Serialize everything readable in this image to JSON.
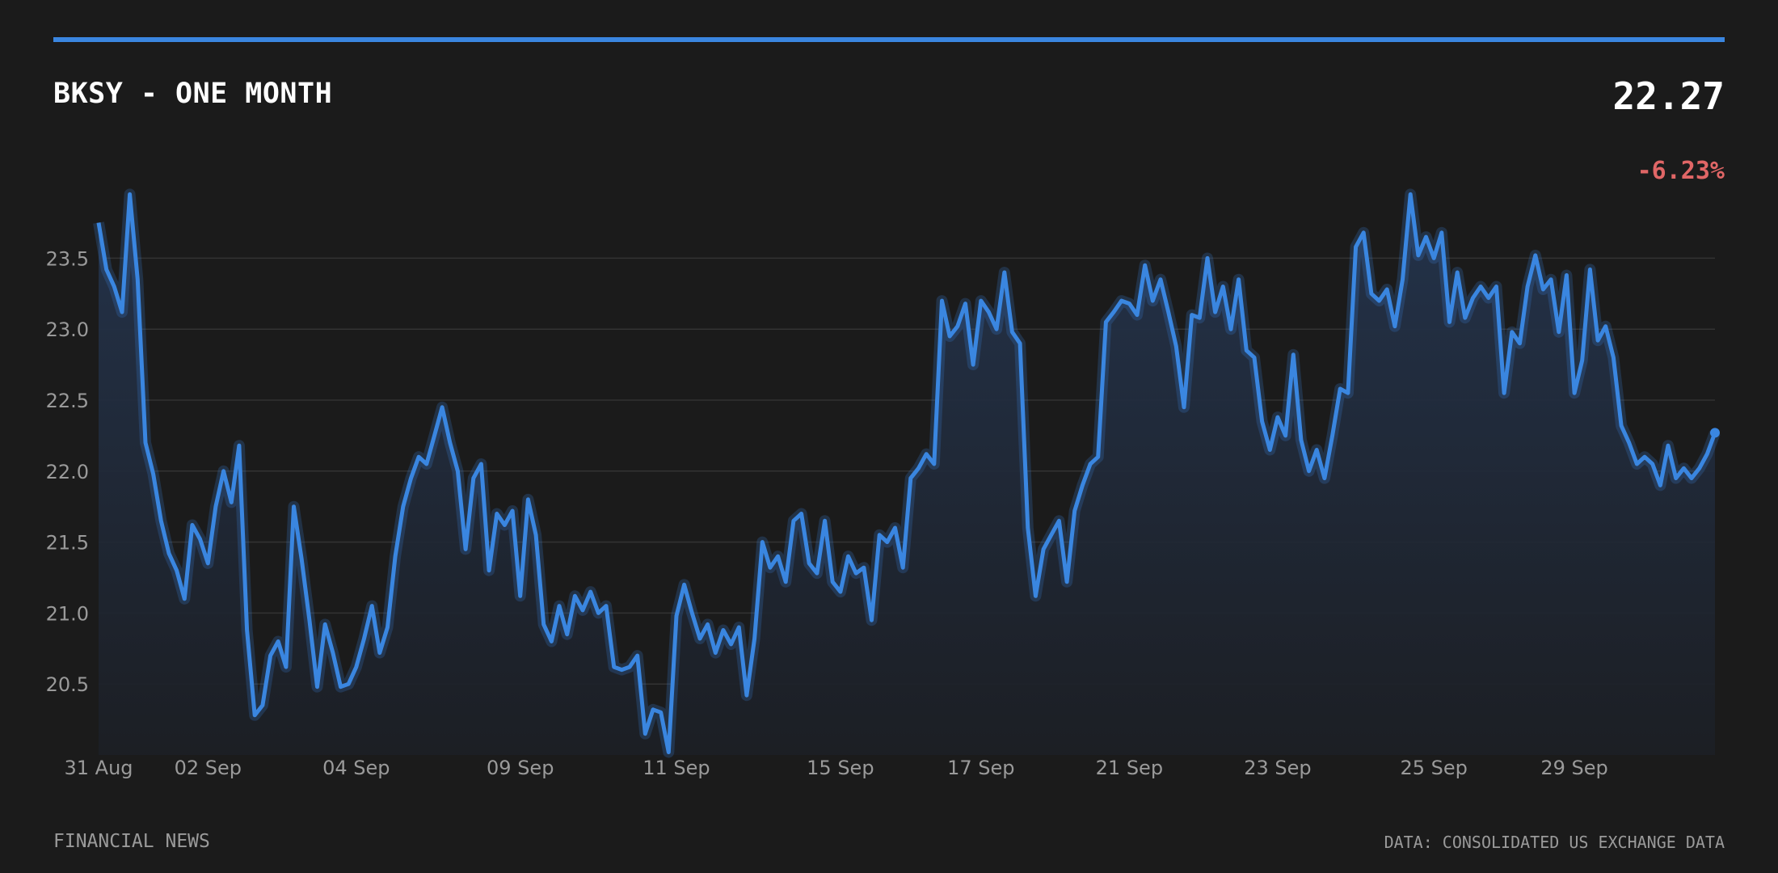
{
  "header": {
    "title": "BKSY - ONE MONTH",
    "price": "22.27",
    "change": "-6.23%"
  },
  "footer": {
    "source_left": "FINANCIAL NEWS",
    "source_right": "DATA: CONSOLIDATED US EXCHANGE DATA"
  },
  "colors": {
    "background": "#1b1b1b",
    "accent": "#3a86e0",
    "negative": "#e06666",
    "grid": "#333333",
    "tick_text": "#9a9a9a"
  },
  "chart_data": {
    "type": "area",
    "title": "BKSY - ONE MONTH",
    "xlabel": "",
    "ylabel": "",
    "ylim": [
      20.0,
      24.0
    ],
    "grid": true,
    "yticks": [
      20.5,
      21.0,
      21.5,
      22.0,
      22.5,
      23.0,
      23.5
    ],
    "xticks": [
      {
        "label": "31 Aug",
        "index": 0
      },
      {
        "label": "02 Sep",
        "index": 14
      },
      {
        "label": "04 Sep",
        "index": 33
      },
      {
        "label": "09 Sep",
        "index": 54
      },
      {
        "label": "11 Sep",
        "index": 74
      },
      {
        "label": "15 Sep",
        "index": 95
      },
      {
        "label": "17 Sep",
        "index": 113
      },
      {
        "label": "21 Sep",
        "index": 132
      },
      {
        "label": "23 Sep",
        "index": 151
      },
      {
        "label": "25 Sep",
        "index": 171
      },
      {
        "label": "29 Sep",
        "index": 189
      }
    ],
    "series": [
      {
        "values": [
          23.75,
          23.42,
          23.3,
          23.12,
          23.95,
          23.35,
          22.2,
          21.98,
          21.65,
          21.42,
          21.3,
          21.1,
          21.62,
          21.52,
          21.35,
          21.75,
          22.0,
          21.78,
          22.18,
          20.88,
          20.28,
          20.35,
          20.7,
          20.8,
          20.62,
          21.75,
          21.38,
          20.95,
          20.48,
          20.92,
          20.72,
          20.48,
          20.5,
          20.62,
          20.82,
          21.05,
          20.72,
          20.9,
          21.4,
          21.75,
          21.95,
          22.1,
          22.05,
          22.25,
          22.45,
          22.2,
          22.0,
          21.45,
          21.95,
          22.05,
          21.3,
          21.7,
          21.62,
          21.72,
          21.12,
          21.8,
          21.55,
          20.92,
          20.8,
          21.05,
          20.85,
          21.12,
          21.02,
          21.15,
          21.0,
          21.05,
          20.62,
          20.6,
          20.62,
          20.7,
          20.15,
          20.32,
          20.3,
          20.02,
          20.98,
          21.2,
          21.0,
          20.82,
          20.92,
          20.72,
          20.88,
          20.78,
          20.9,
          20.42,
          20.82,
          21.5,
          21.32,
          21.4,
          21.22,
          21.65,
          21.7,
          21.35,
          21.28,
          21.65,
          21.22,
          21.15,
          21.4,
          21.28,
          21.32,
          20.95,
          21.55,
          21.5,
          21.6,
          21.32,
          21.95,
          22.02,
          22.12,
          22.05,
          23.2,
          22.95,
          23.02,
          23.18,
          22.75,
          23.2,
          23.12,
          23.0,
          23.4,
          22.98,
          22.9,
          21.6,
          21.12,
          21.45,
          21.55,
          21.65,
          21.22,
          21.72,
          21.9,
          22.05,
          22.1,
          23.05,
          23.12,
          23.2,
          23.18,
          23.1,
          23.45,
          23.2,
          23.35,
          23.12,
          22.88,
          22.45,
          23.1,
          23.08,
          23.5,
          23.12,
          23.3,
          23.0,
          23.35,
          22.85,
          22.8,
          22.35,
          22.15,
          22.38,
          22.25,
          22.82,
          22.22,
          22.0,
          22.15,
          21.95,
          22.25,
          22.58,
          22.55,
          23.58,
          23.68,
          23.25,
          23.2,
          23.28,
          23.02,
          23.35,
          23.95,
          23.52,
          23.65,
          23.5,
          23.68,
          23.05,
          23.4,
          23.08,
          23.22,
          23.3,
          23.22,
          23.3,
          22.55,
          22.98,
          22.9,
          23.3,
          23.52,
          23.28,
          23.35,
          22.98,
          23.38,
          22.55,
          22.78,
          23.42,
          22.92,
          23.02,
          22.8,
          22.32,
          22.2,
          22.05,
          22.1,
          22.05,
          21.9,
          22.18,
          21.95,
          22.02,
          21.95,
          22.02,
          22.12,
          22.27
        ]
      }
    ]
  }
}
